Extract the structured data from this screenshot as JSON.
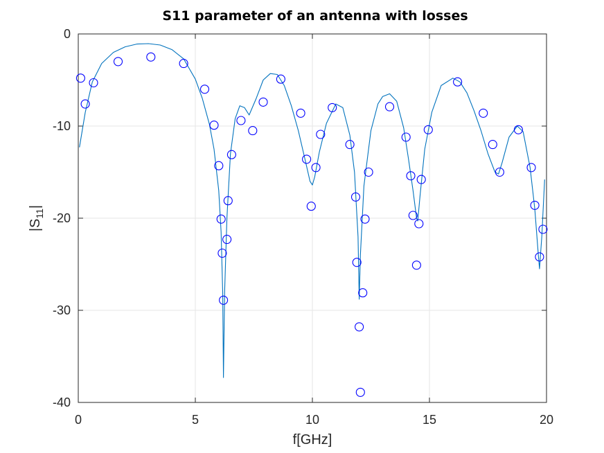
{
  "chart_data": {
    "type": "line",
    "title": "S11 parameter of an antenna with losses",
    "xlabel": "f[GHz]",
    "ylabel_base": "|S",
    "ylabel_sub": "11",
    "ylabel_end": "|",
    "xlim": [
      0,
      20
    ],
    "ylim": [
      -40,
      0
    ],
    "x_ticks": [
      0,
      5,
      10,
      15,
      20
    ],
    "y_ticks": [
      0,
      -10,
      -20,
      -30,
      -40
    ],
    "x_tick_labels": [
      "0",
      "5",
      "10",
      "15",
      "20"
    ],
    "y_tick_labels": [
      "0",
      "-10",
      "-20",
      "-30",
      "-40"
    ],
    "grid": true,
    "series": [
      {
        "type": "line",
        "color": "#0072bd",
        "x": [
          0.05,
          0.3,
          0.6,
          1.0,
          1.5,
          2.0,
          2.5,
          3.0,
          3.5,
          4.0,
          4.5,
          5.0,
          5.3,
          5.6,
          5.8,
          6.0,
          6.1,
          6.17,
          6.2,
          6.25,
          6.35,
          6.5,
          6.7,
          6.9,
          7.1,
          7.3,
          7.6,
          7.9,
          8.2,
          8.5,
          8.8,
          9.1,
          9.4,
          9.7,
          9.9,
          10.0,
          10.1,
          10.3,
          10.6,
          11.0,
          11.3,
          11.6,
          11.8,
          11.95,
          12.0,
          12.05,
          12.2,
          12.5,
          12.8,
          13.0,
          13.3,
          13.6,
          13.9,
          14.1,
          14.3,
          14.45,
          14.5,
          14.6,
          14.8,
          15.1,
          15.5,
          16.0,
          16.3,
          16.6,
          16.9,
          17.2,
          17.5,
          17.8,
          17.95,
          18.1,
          18.4,
          18.75,
          19.0,
          19.3,
          19.5,
          19.65,
          19.7,
          19.8,
          19.92
        ],
        "y": [
          -12.3,
          -8.5,
          -5.2,
          -3.2,
          -2.0,
          -1.4,
          -1.1,
          -1.05,
          -1.2,
          -1.7,
          -2.7,
          -4.9,
          -7.0,
          -9.8,
          -12.5,
          -17.0,
          -21.5,
          -28.0,
          -37.3,
          -28.0,
          -20.0,
          -13.0,
          -9.2,
          -7.8,
          -8.0,
          -8.8,
          -7.0,
          -5.0,
          -4.3,
          -4.4,
          -5.6,
          -7.8,
          -10.5,
          -13.8,
          -16.0,
          -16.4,
          -15.5,
          -12.8,
          -9.7,
          -7.6,
          -8.0,
          -11.0,
          -15.0,
          -22.0,
          -28.8,
          -24.0,
          -16.5,
          -10.5,
          -7.6,
          -6.8,
          -6.5,
          -7.3,
          -10.2,
          -13.5,
          -17.0,
          -20.0,
          -20.3,
          -17.5,
          -12.5,
          -8.5,
          -5.6,
          -4.8,
          -5.2,
          -6.4,
          -8.3,
          -10.5,
          -13.0,
          -15.0,
          -15.2,
          -14.0,
          -11.2,
          -10.0,
          -10.6,
          -14.5,
          -19.0,
          -24.0,
          -25.5,
          -22.0,
          -15.8
        ]
      },
      {
        "type": "scatter",
        "marker": "circle",
        "color": "#0000ff",
        "x": [
          0.1,
          0.3,
          0.65,
          1.7,
          3.1,
          4.5,
          5.4,
          5.8,
          6.0,
          6.1,
          6.15,
          6.2,
          6.35,
          6.4,
          6.55,
          6.95,
          7.45,
          7.9,
          8.65,
          9.5,
          9.75,
          9.95,
          10.15,
          10.35,
          10.85,
          11.6,
          11.85,
          11.9,
          12.0,
          12.05,
          12.15,
          12.25,
          12.4,
          13.3,
          14.0,
          14.2,
          14.3,
          14.45,
          14.55,
          14.65,
          14.95,
          16.2,
          17.3,
          17.7,
          18.0,
          18.8,
          19.35,
          19.5,
          19.7,
          19.85
        ],
        "y": [
          -4.8,
          -7.6,
          -5.3,
          -3.0,
          -2.5,
          -3.2,
          -6.0,
          -9.9,
          -14.3,
          -20.1,
          -23.8,
          -28.9,
          -22.3,
          -18.1,
          -13.1,
          -9.4,
          -10.5,
          -7.4,
          -4.9,
          -8.6,
          -13.6,
          -18.7,
          -14.5,
          -10.9,
          -8.0,
          -12.0,
          -17.7,
          -24.8,
          -31.8,
          -38.9,
          -28.1,
          -20.1,
          -15.0,
          -7.9,
          -11.2,
          -15.4,
          -19.7,
          -25.1,
          -20.6,
          -15.8,
          -10.4,
          -5.2,
          -8.6,
          -12.0,
          -15.0,
          -10.4,
          -14.5,
          -18.6,
          -24.2,
          -21.2
        ]
      }
    ]
  }
}
